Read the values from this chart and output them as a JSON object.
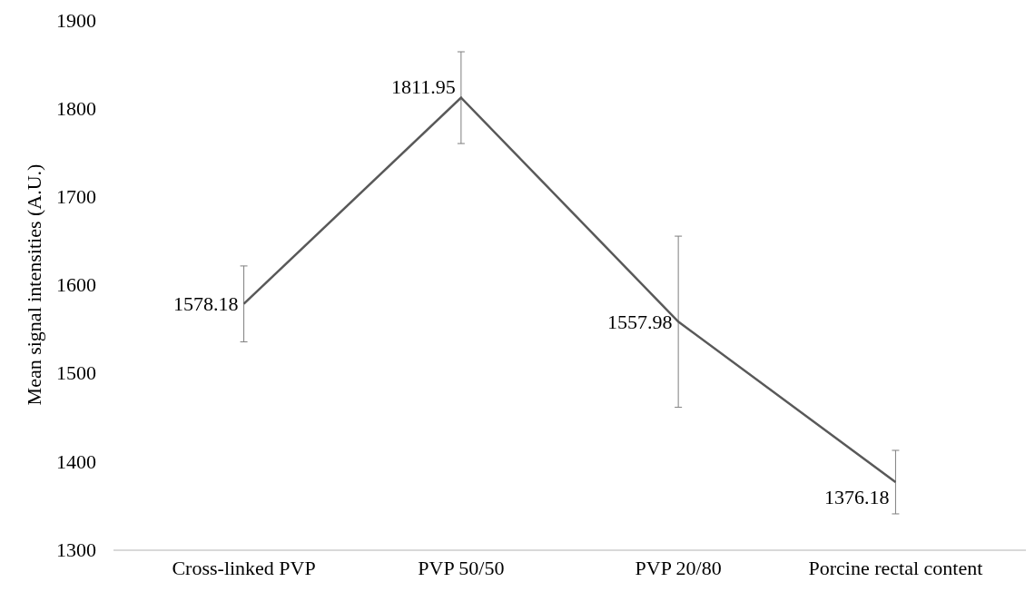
{
  "chart_data": {
    "type": "line",
    "ylabel": "Mean signal intensities (A.U.)",
    "categories": [
      "Cross-linked PVP",
      "PVP 50/50",
      "PVP 20/80",
      "Porcine rectal content"
    ],
    "series": [
      {
        "color": "#595959",
        "values": [
          1578.18,
          1811.95,
          1557.98,
          1376.18
        ],
        "errors": [
          43,
          52,
          97,
          36
        ]
      }
    ],
    "data_labels": true,
    "marker": "none",
    "line_style": "solid",
    "ylim": [
      1300,
      1900
    ],
    "yticks": [
      1300,
      1400,
      1500,
      1600,
      1700,
      1800,
      1900
    ],
    "grid": false
  }
}
